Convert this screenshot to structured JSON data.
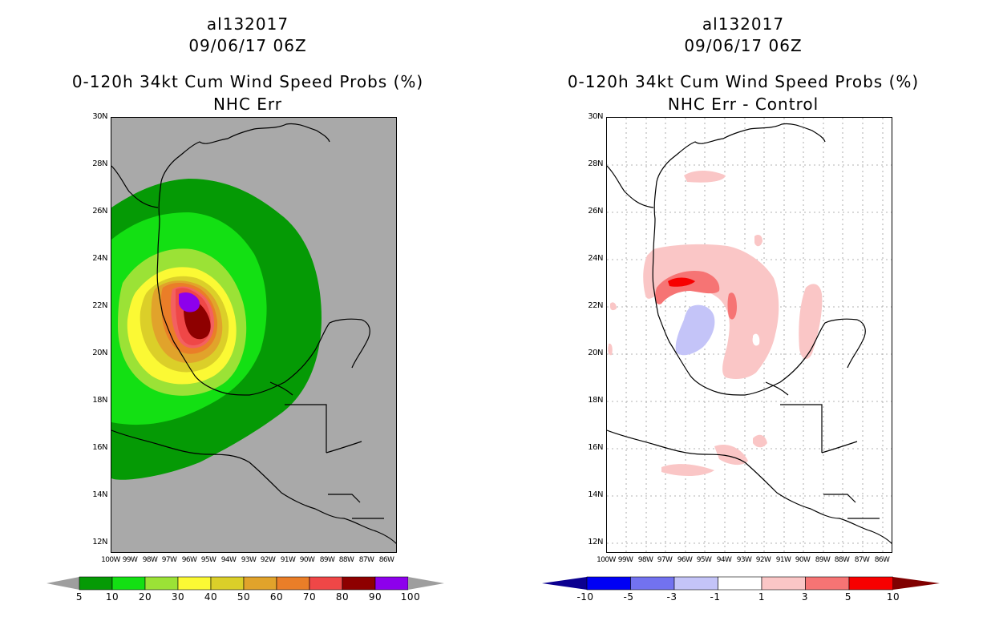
{
  "left": {
    "storm_id": "al132017",
    "datetime": "09/06/17 06Z",
    "product": "0-120h 34kt Cum Wind Speed Probs (%)",
    "subtitle": "NHC Err",
    "colorbar": {
      "labels": [
        "5",
        "10",
        "20",
        "30",
        "40",
        "50",
        "60",
        "70",
        "80",
        "90",
        "100"
      ],
      "colors": [
        "#059a05",
        "#13e013",
        "#9be236",
        "#fbf934",
        "#dbcf29",
        "#e1a32b",
        "#ea7e28",
        "#ef4747",
        "#8e0000",
        "#8d00ec"
      ],
      "under_color": "#9e9e9e",
      "over_color": "#9e9e9e"
    }
  },
  "right": {
    "storm_id": "al132017",
    "datetime": "09/06/17 06Z",
    "product": "0-120h 34kt Cum Wind Speed Probs (%)",
    "subtitle": "NHC Err - Control",
    "colorbar": {
      "labels": [
        "-10",
        "-5",
        "-3",
        "-1",
        "1",
        "3",
        "5",
        "10"
      ],
      "colors": [
        "#0000f5",
        "#7272f0",
        "#c4c4f8",
        "#ffffff",
        "#fac6c6",
        "#f67474",
        "#f70000"
      ],
      "under_color": "#0b0090",
      "over_color": "#800000"
    }
  },
  "axes": {
    "lat_labels": [
      "30N",
      "28N",
      "26N",
      "24N",
      "22N",
      "20N",
      "18N",
      "16N",
      "14N",
      "12N"
    ],
    "lon_labels": [
      "100W",
      "99W",
      "98W",
      "97W",
      "96W",
      "95W",
      "94W",
      "93W",
      "92W",
      "91W",
      "90W",
      "89W",
      "88W",
      "87W",
      "86W"
    ]
  },
  "map_extent": {
    "lon_min": -100,
    "lon_max": -85.5,
    "lat_min": 11.6,
    "lat_max": 30
  },
  "background_colors": {
    "land_sea_no_data": "#a9a9a9",
    "diff_background": "#ffffff"
  }
}
